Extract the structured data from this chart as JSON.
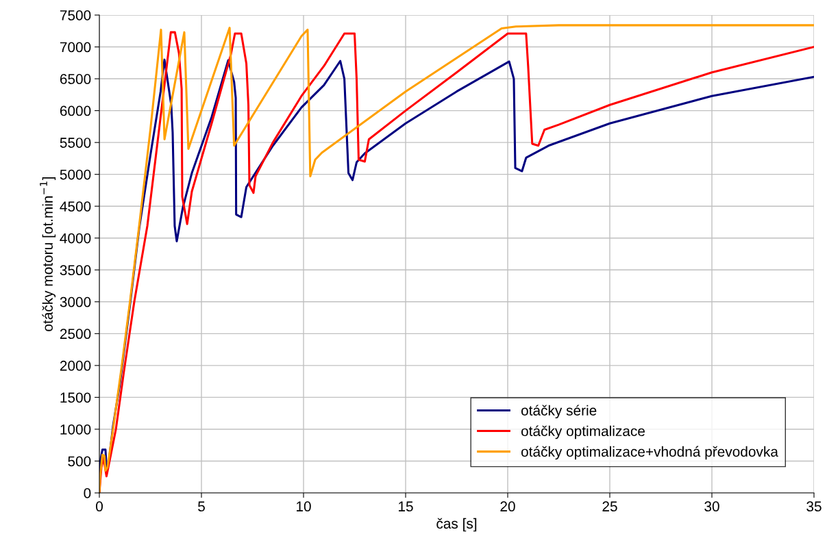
{
  "chart_data": {
    "type": "line",
    "xlabel": "čas [s]",
    "ylabel": "otáčky motoru [ot.min$^{−1}$]",
    "xlim": [
      0,
      35
    ],
    "ylim": [
      0,
      7500
    ],
    "xticks": [
      0,
      5,
      10,
      15,
      20,
      25,
      30,
      35
    ],
    "yticks": [
      0,
      500,
      1000,
      1500,
      2000,
      2500,
      3000,
      3500,
      4000,
      4500,
      5000,
      5500,
      6000,
      6500,
      7000,
      7500
    ],
    "grid": true,
    "legend": "bottom right",
    "marker": "none",
    "line_style": "solid",
    "series": [
      {
        "name": "otáčky série",
        "color": "#000080",
        "x": [
          0,
          0.05,
          0.15,
          0.3,
          0.35,
          0.45,
          0.67,
          1.0,
          1.5,
          1.95,
          2.5,
          3.0,
          3.19,
          3.52,
          3.59,
          3.69,
          3.79,
          4.09,
          4.53,
          5.5,
          6.31,
          6.6,
          6.68,
          6.7,
          6.95,
          7.2,
          8.5,
          9.9,
          11.0,
          11.8,
          12.0,
          12.2,
          12.4,
          12.6,
          13.0,
          15.0,
          17.5,
          20.07,
          20.3,
          20.37,
          20.7,
          20.9,
          22.0,
          25.0,
          30.0,
          35.0
        ],
        "values": [
          0,
          500,
          680,
          680,
          400,
          450,
          1050,
          1700,
          2950,
          4150,
          5300,
          6300,
          6800,
          6090,
          5660,
          4190,
          3950,
          4480,
          5020,
          5900,
          6790,
          6450,
          6200,
          4370,
          4330,
          4800,
          5450,
          6050,
          6400,
          6780,
          6500,
          5020,
          4910,
          5190,
          5330,
          5800,
          6300,
          6770,
          6500,
          5100,
          5050,
          5260,
          5450,
          5800,
          6230,
          6530
        ]
      },
      {
        "name": "otáčky optimalizace",
        "color": "#ff0000",
        "x": [
          0,
          0.1,
          0.2,
          0.35,
          0.5,
          0.81,
          1.2,
          1.71,
          2.35,
          3.0,
          3.5,
          3.7,
          3.9,
          4.03,
          4.06,
          4.3,
          4.53,
          5.5,
          6.44,
          6.64,
          6.95,
          7.2,
          7.3,
          7.35,
          7.55,
          7.65,
          8.5,
          9.9,
          11.0,
          12.0,
          12.5,
          12.6,
          12.7,
          13.0,
          13.2,
          15.0,
          17.5,
          20.0,
          20.9,
          21.0,
          21.2,
          21.5,
          21.8,
          22.5,
          25.0,
          30.0,
          35.0
        ],
        "values": [
          0,
          400,
          550,
          260,
          500,
          1000,
          1900,
          3000,
          4190,
          5900,
          7230,
          7230,
          6900,
          6340,
          4650,
          4220,
          4730,
          5800,
          6880,
          7210,
          7210,
          6740,
          6090,
          4830,
          4710,
          4970,
          5500,
          6230,
          6700,
          7210,
          7210,
          6500,
          5230,
          5200,
          5550,
          6000,
          6600,
          7210,
          7210,
          6700,
          5480,
          5450,
          5700,
          5780,
          6090,
          6600,
          7000
        ]
      },
      {
        "name": "otáčky optimalizace+vhodná převodovka",
        "color": "#ffa000",
        "x": [
          0,
          0.05,
          0.15,
          0.25,
          0.3,
          0.4,
          0.67,
          1.1,
          1.5,
          1.95,
          2.5,
          3.02,
          3.19,
          4.16,
          4.36,
          6.38,
          6.6,
          9.9,
          10.2,
          10.33,
          10.57,
          10.9,
          15.0,
          19.7,
          20.4,
          22.5,
          35.0
        ],
        "values": [
          0,
          300,
          600,
          580,
          350,
          400,
          1000,
          2000,
          3000,
          4190,
          5700,
          7270,
          5550,
          7230,
          5400,
          7300,
          5450,
          7170,
          7270,
          4970,
          5230,
          5340,
          6300,
          7290,
          7320,
          7340,
          7340
        ]
      }
    ]
  }
}
